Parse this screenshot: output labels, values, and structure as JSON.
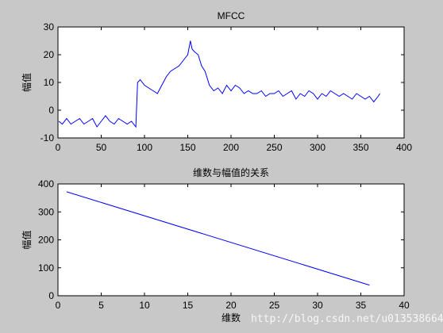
{
  "watermark": "http://blog.csdn.net/u013538664",
  "chart_data": [
    {
      "type": "line",
      "title": "MFCC",
      "xlabel": "",
      "ylabel": "幅值",
      "xlim": [
        0,
        400
      ],
      "ylim": [
        -10,
        30
      ],
      "xticks": [
        "0",
        "50",
        "100",
        "150",
        "200",
        "250",
        "300",
        "350",
        "400"
      ],
      "yticks": [
        "-10",
        "0",
        "10",
        "20",
        "30"
      ],
      "grid": false,
      "line_color": "#0000ff",
      "series": [
        {
          "x": [
            1,
            5,
            10,
            15,
            20,
            25,
            30,
            35,
            40,
            45,
            50,
            55,
            60,
            65,
            70,
            75,
            80,
            85,
            90,
            92,
            95,
            100,
            105,
            110,
            115,
            120,
            125,
            130,
            135,
            140,
            145,
            150,
            153,
            155,
            158,
            162,
            166,
            170,
            175,
            180,
            185,
            190,
            195,
            200,
            205,
            210,
            215,
            220,
            225,
            230,
            235,
            240,
            245,
            250,
            255,
            260,
            265,
            270,
            275,
            280,
            285,
            290,
            295,
            300,
            305,
            310,
            315,
            320,
            325,
            330,
            335,
            340,
            345,
            350,
            355,
            360,
            365,
            370,
            372
          ],
          "y": [
            -4,
            -5,
            -3,
            -5,
            -4,
            -3,
            -5,
            -4,
            -3,
            -6,
            -4,
            -2,
            -4,
            -5,
            -3,
            -4,
            -5,
            -4,
            -6,
            10,
            11,
            9,
            8,
            7,
            6,
            9,
            12,
            14,
            15,
            16,
            18,
            20,
            25,
            22,
            21,
            20,
            16,
            14,
            9,
            7,
            8,
            6,
            9,
            7,
            9,
            8,
            6,
            7,
            6,
            6,
            7,
            5,
            6,
            6,
            7,
            5,
            6,
            7,
            4,
            6,
            5,
            7,
            6,
            4,
            6,
            5,
            7,
            6,
            5,
            6,
            5,
            4,
            6,
            5,
            4,
            5,
            3,
            5,
            6
          ]
        }
      ]
    },
    {
      "type": "line",
      "title": "维数与幅值的关系",
      "xlabel": "维数",
      "ylabel": "幅值",
      "xlim": [
        0,
        40
      ],
      "ylim": [
        0,
        400
      ],
      "xticks": [
        "0",
        "5",
        "10",
        "15",
        "20",
        "25",
        "30",
        "35",
        "40"
      ],
      "yticks": [
        "0",
        "100",
        "200",
        "300",
        "400"
      ],
      "grid": false,
      "line_color": "#0000ff",
      "series": [
        {
          "x": [
            1,
            36
          ],
          "y": [
            372,
            38
          ]
        }
      ]
    }
  ]
}
